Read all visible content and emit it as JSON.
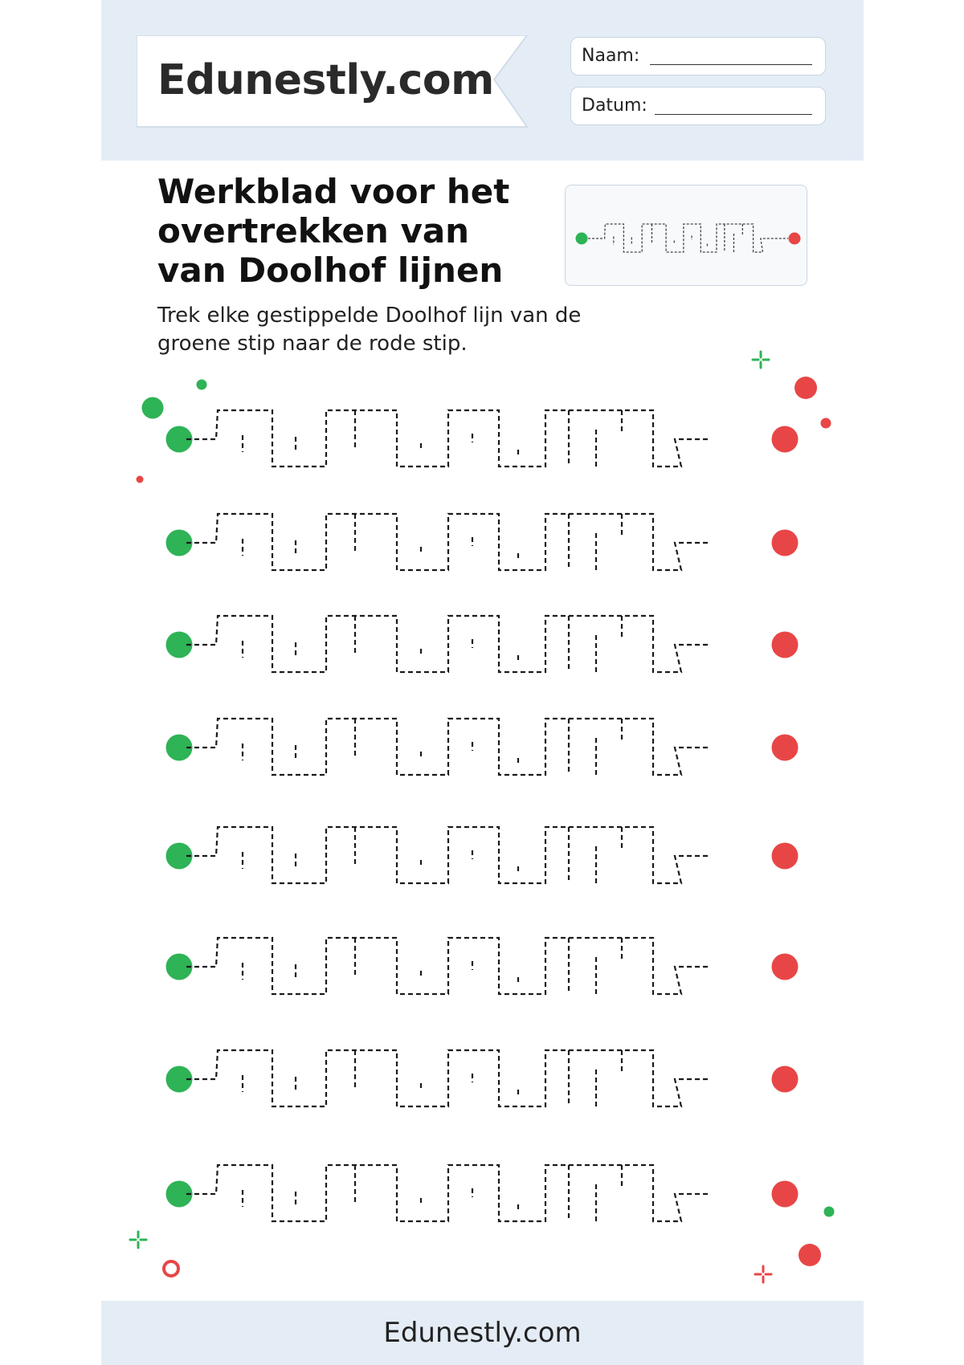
{
  "header": {
    "brand": "Edunestly.com",
    "name_label": "Naam:",
    "date_label": "Datum:"
  },
  "title": {
    "line1": "Werkblad voor het",
    "line2": "overtrekken van",
    "line3": "van Doolhof lijnen"
  },
  "instruction": {
    "line1": "Trek elke gestippelde Doolhof lijn van de",
    "line2": "groene stip naar de rode stip."
  },
  "worksheet": {
    "row_count": 8,
    "start_color": "#2eb356",
    "end_color": "#e84646",
    "line_color": "#1a1a1a"
  },
  "footer": {
    "brand": "Edunestly.com"
  }
}
